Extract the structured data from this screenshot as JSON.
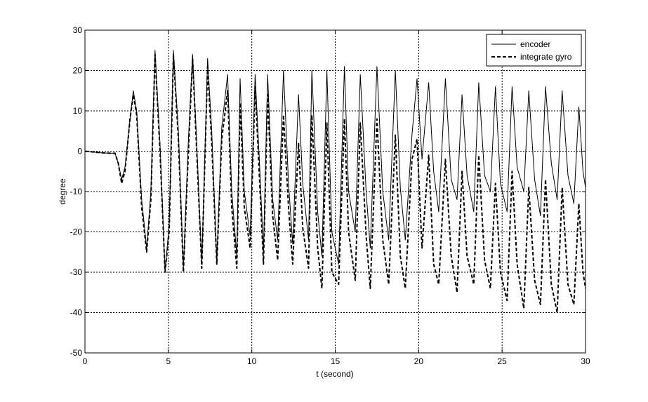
{
  "chart_data": {
    "type": "line",
    "xlabel": "t (second)",
    "ylabel": "degree",
    "xlim": [
      0,
      30
    ],
    "ylim": [
      -50,
      30
    ],
    "x_ticks": [
      0,
      5,
      10,
      15,
      20,
      25,
      30
    ],
    "y_ticks": [
      -50,
      -40,
      -30,
      -20,
      -10,
      0,
      10,
      20,
      30
    ],
    "x_tick_labels": [
      "0",
      "5",
      "10",
      "15",
      "20",
      "25",
      "30"
    ],
    "y_tick_labels": [
      "-50",
      "-40",
      "-30",
      "-20",
      "-10",
      "0",
      "10",
      "20",
      "30"
    ],
    "grid": true,
    "legend_position": "top-right",
    "series": [
      {
        "name": "encoder",
        "style": "solid",
        "color": "#000000",
        "x": [
          0,
          0.5,
          1.0,
          1.5,
          1.8,
          2.0,
          2.2,
          2.4,
          2.7,
          2.9,
          3.1,
          3.4,
          3.7,
          3.95,
          4.2,
          4.5,
          4.8,
          5.05,
          5.3,
          5.6,
          5.9,
          6.2,
          6.45,
          6.7,
          7.0,
          7.35,
          7.6,
          7.9,
          8.2,
          8.55,
          8.8,
          9.1,
          9.3,
          9.55,
          9.9,
          10.2,
          10.45,
          10.7,
          10.95,
          11.25,
          11.55,
          11.9,
          12.2,
          12.45,
          12.8,
          13.05,
          13.4,
          13.6,
          13.95,
          14.2,
          14.5,
          14.8,
          15.2,
          15.55,
          15.8,
          16.2,
          16.5,
          16.85,
          17.1,
          17.5,
          17.85,
          18.2,
          18.6,
          18.9,
          19.2,
          19.6,
          19.9,
          20.2,
          20.6,
          20.9,
          21.2,
          21.6,
          21.95,
          22.3,
          22.6,
          22.9,
          23.3,
          23.6,
          23.95,
          24.3,
          24.6,
          24.9,
          25.3,
          25.6,
          25.9,
          26.3,
          26.6,
          26.95,
          27.3,
          27.6,
          27.95,
          28.3,
          28.6,
          28.95,
          29.3,
          29.6,
          29.85,
          30.0
        ],
        "y": [
          0,
          -0.2,
          -0.4,
          -0.5,
          -0.5,
          -3.0,
          -7.0,
          -4.0,
          8.0,
          15.0,
          10.0,
          -12.0,
          -24.0,
          -10.0,
          25.0,
          2.0,
          -30.0,
          -18.0,
          25.0,
          5.0,
          -29.0,
          3.0,
          24.0,
          2.0,
          -28.0,
          23.0,
          5.0,
          -27.0,
          6.0,
          19.0,
          -10.0,
          -26.0,
          18.0,
          -10.0,
          -21.0,
          19.0,
          -2.0,
          -25.0,
          19.0,
          -12.0,
          -22.0,
          20.0,
          -8.0,
          -23.0,
          14.0,
          -8.0,
          -22.0,
          20.0,
          -15.0,
          -26.0,
          20.0,
          -20.0,
          -28.0,
          21.0,
          -10.0,
          -20.0,
          19.0,
          -10.0,
          -24.0,
          21.0,
          -10.0,
          -22.0,
          20.0,
          -9.0,
          -22.0,
          4.0,
          18.0,
          -2.0,
          17.0,
          -5.0,
          -15.0,
          18.0,
          -7.0,
          -12.0,
          14.0,
          -6.0,
          -15.0,
          17.0,
          -6.0,
          -10.0,
          16.0,
          -8.0,
          -15.0,
          16.0,
          -4.0,
          -10.0,
          15.0,
          -7.0,
          -16.0,
          16.0,
          -3.0,
          -12.0,
          15.0,
          -6.0,
          -13.0,
          11.0,
          -5.0,
          -9.0
        ]
      },
      {
        "name": "integrate gyro",
        "style": "dashed",
        "color": "#000000",
        "x": [
          0,
          0.5,
          1.0,
          1.5,
          1.8,
          2.0,
          2.2,
          2.4,
          2.7,
          2.9,
          3.1,
          3.4,
          3.7,
          3.95,
          4.2,
          4.5,
          4.8,
          5.05,
          5.3,
          5.6,
          5.9,
          6.2,
          6.45,
          6.7,
          7.0,
          7.35,
          7.6,
          7.9,
          8.2,
          8.55,
          8.8,
          9.1,
          9.3,
          9.55,
          9.9,
          10.2,
          10.45,
          10.7,
          10.95,
          11.25,
          11.55,
          11.9,
          12.2,
          12.45,
          12.8,
          13.05,
          13.4,
          13.6,
          13.95,
          14.2,
          14.5,
          14.8,
          15.2,
          15.55,
          15.8,
          16.2,
          16.5,
          16.85,
          17.1,
          17.5,
          17.85,
          18.2,
          18.6,
          18.9,
          19.2,
          19.6,
          19.9,
          20.2,
          20.6,
          20.9,
          21.2,
          21.6,
          21.95,
          22.3,
          22.6,
          22.9,
          23.3,
          23.6,
          23.95,
          24.3,
          24.6,
          24.9,
          25.3,
          25.6,
          25.9,
          26.3,
          26.6,
          26.95,
          27.3,
          27.6,
          27.95,
          28.3,
          28.6,
          28.95,
          29.3,
          29.6,
          29.85,
          30.0
        ],
        "y": [
          0,
          -0.2,
          -0.4,
          -0.5,
          -0.5,
          -3.0,
          -8.0,
          -5.0,
          8.0,
          14.0,
          9.0,
          -14.0,
          -25.0,
          -12.0,
          24.0,
          0.0,
          -30.0,
          -20.0,
          24.0,
          3.0,
          -30.0,
          0.0,
          23.0,
          0.0,
          -29.0,
          21.0,
          2.0,
          -28.0,
          3.0,
          15.0,
          -14.0,
          -29.0,
          12.0,
          -14.0,
          -24.0,
          16.0,
          -6.0,
          -28.0,
          14.0,
          -16.0,
          -27.0,
          9.0,
          -14.0,
          -28.0,
          2.0,
          -19.0,
          -29.0,
          9.0,
          -24.0,
          -34.0,
          7.0,
          -30.0,
          -33.0,
          8.0,
          -20.0,
          -32.0,
          7.0,
          -21.0,
          -34.0,
          8.0,
          -22.0,
          -33.0,
          4.0,
          -26.0,
          -34.0,
          -2.0,
          3.0,
          -24.0,
          -1.0,
          -28.0,
          -33.0,
          -2.0,
          -26.0,
          -35.0,
          -5.0,
          -26.0,
          -33.0,
          -1.0,
          -27.0,
          -34.0,
          -8.0,
          -30.0,
          -37.0,
          -5.0,
          -28.0,
          -39.0,
          -9.0,
          -32.0,
          -38.0,
          -7.0,
          -33.0,
          -40.0,
          -9.0,
          -33.0,
          -38.0,
          -13.0,
          -30.0,
          -34.0
        ]
      }
    ]
  }
}
